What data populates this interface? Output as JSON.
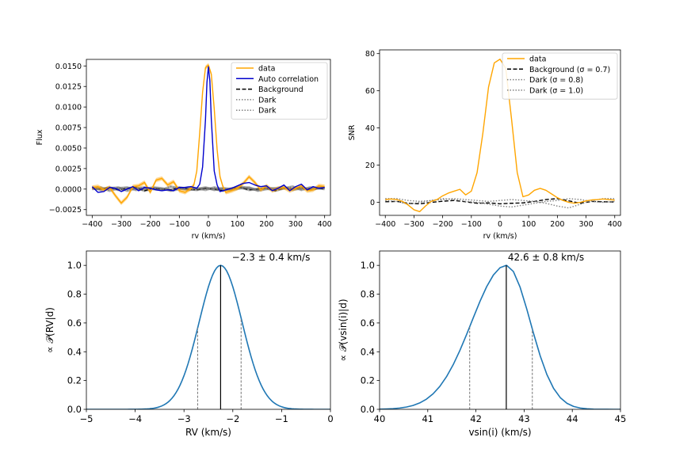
{
  "colors": {
    "data": "#ffa500",
    "auto": "#0000cd",
    "background": "#000000",
    "dark": "#808080",
    "posterior": "#1f77b4",
    "ci": "#808080"
  },
  "chart_data": [
    {
      "id": "flux",
      "type": "line",
      "title": "",
      "xlabel": "rv (km/s)",
      "ylabel": "Flux",
      "xlim": [
        -420,
        420
      ],
      "ylim": [
        -0.0032,
        0.0158
      ],
      "xticks": [
        -400,
        -300,
        -200,
        -100,
        0,
        100,
        200,
        300,
        400
      ],
      "yticks": [
        -0.0025,
        0.0,
        0.0025,
        0.005,
        0.0075,
        0.01,
        0.0125,
        0.015
      ],
      "ytick_labels": [
        "−0.0025",
        "0.0000",
        "0.0025",
        "0.0050",
        "0.0075",
        "0.0100",
        "0.0125",
        "0.0150"
      ],
      "legend": [
        "data",
        "Auto correlation",
        "Background",
        "Dark",
        "Dark"
      ],
      "legend_position": "top-right",
      "series": [
        {
          "name": "data",
          "style": "solid",
          "band": 0.00025,
          "x": [
            -400,
            -380,
            -360,
            -340,
            -320,
            -300,
            -280,
            -260,
            -240,
            -220,
            -200,
            -180,
            -160,
            -140,
            -120,
            -100,
            -80,
            -60,
            -50,
            -40,
            -30,
            -20,
            -10,
            0,
            10,
            20,
            30,
            40,
            50,
            60,
            80,
            100,
            120,
            140,
            160,
            180,
            200,
            220,
            240,
            260,
            280,
            300,
            320,
            340,
            360,
            380,
            400
          ],
          "y": [
            0.0002,
            0.0003,
            -0.0001,
            0.0002,
            -0.0008,
            -0.0017,
            -0.001,
            0.0003,
            0.0004,
            0.0008,
            -0.0004,
            0.0011,
            0.0013,
            0.0005,
            0.0009,
            -0.0002,
            -0.0004,
            0.0001,
            0.0005,
            0.0022,
            0.0068,
            0.0118,
            0.0148,
            0.0151,
            0.014,
            0.0098,
            0.0048,
            0.0015,
            0.0003,
            -0.0004,
            -0.0002,
            0.0001,
            0.0007,
            0.0015,
            0.0008,
            -0.0001,
            0.0004,
            -0.0002,
            0.0001,
            0.0002,
            -0.0002,
            0.0001,
            0.0004,
            -0.0002,
            -0.0001,
            0.0004,
            0.0003
          ]
        },
        {
          "name": "Auto correlation",
          "style": "solid",
          "x": [
            -400,
            -380,
            -360,
            -340,
            -320,
            -300,
            -280,
            -260,
            -240,
            -220,
            -200,
            -180,
            -160,
            -140,
            -120,
            -100,
            -80,
            -60,
            -40,
            -30,
            -20,
            -10,
            -5,
            0,
            5,
            10,
            20,
            30,
            40,
            60,
            80,
            100,
            120,
            140,
            160,
            180,
            200,
            220,
            240,
            260,
            280,
            300,
            320,
            340,
            360,
            380,
            400
          ],
          "y": [
            0.0003,
            -0.0004,
            -0.0003,
            0.0002,
            0.0001,
            -0.0003,
            0.0,
            0.0003,
            -0.0002,
            0.0002,
            0.0001,
            -0.0001,
            -0.0002,
            -0.0001,
            -0.0002,
            0.0002,
            0.0002,
            0.0003,
            0.0001,
            0.0006,
            0.0027,
            0.0085,
            0.013,
            0.0149,
            0.0132,
            0.0085,
            0.0022,
            0.0005,
            -0.0003,
            -0.0001,
            0.0001,
            0.0004,
            0.0007,
            0.0008,
            0.0005,
            0.0003,
            0.0004,
            -0.0002,
            0.0001,
            0.0005,
            -0.0002,
            0.0003,
            0.0006,
            -0.0001,
            0.0003,
            0.0001,
            0.0002
          ]
        },
        {
          "name": "Background",
          "style": "dashed",
          "x": [
            -400,
            -370,
            -340,
            -310,
            -280,
            -250,
            -220,
            -190,
            -160,
            -130,
            -100,
            -70,
            -40,
            -10,
            20,
            50,
            80,
            110,
            140,
            170,
            200,
            230,
            260,
            290,
            320,
            350,
            380,
            400
          ],
          "y": [
            0.0001,
            0.0,
            0.0002,
            -0.0001,
            0.0001,
            0.0002,
            -0.0002,
            0.0001,
            0.0,
            -0.0001,
            0.0002,
            0.0,
            -0.0001,
            0.0001,
            0.0,
            -0.0002,
            0.0001,
            0.0002,
            -0.0001,
            0.0,
            0.0001,
            -0.0002,
            0.0001,
            0.0,
            0.0002,
            -0.0001,
            0.0001,
            0.0
          ]
        },
        {
          "name": "Dark",
          "style": "dotted",
          "x": [
            -400,
            -370,
            -340,
            -310,
            -280,
            -250,
            -220,
            -190,
            -160,
            -130,
            -100,
            -70,
            -40,
            -10,
            20,
            50,
            80,
            110,
            140,
            170,
            200,
            230,
            260,
            290,
            320,
            350,
            380,
            400
          ],
          "y": [
            0.0002,
            -0.0001,
            0.0001,
            0.0002,
            -0.0002,
            0.0001,
            0.0002,
            0.0,
            -0.0001,
            0.0003,
            0.0001,
            -0.0001,
            0.0,
            0.0002,
            -0.0001,
            0.0001,
            0.0,
            0.0003,
            0.0001,
            -0.0001,
            0.0002,
            0.0,
            0.0001,
            0.0003,
            -0.0001,
            0.0002,
            0.0001,
            0.0002
          ]
        },
        {
          "name": "Dark",
          "style": "dotted",
          "x": [
            -400,
            -370,
            -340,
            -310,
            -280,
            -250,
            -220,
            -190,
            -160,
            -130,
            -100,
            -70,
            -40,
            -10,
            20,
            50,
            80,
            110,
            140,
            170,
            200,
            230,
            260,
            290,
            320,
            350,
            380,
            400
          ],
          "y": [
            0.0,
            0.0002,
            -0.0002,
            0.0001,
            0.0002,
            -0.0001,
            0.0,
            0.0002,
            0.0001,
            -0.0002,
            0.0,
            0.0002,
            0.0001,
            -0.0001,
            0.0002,
            0.0,
            -0.0001,
            0.0001,
            0.0002,
            -0.0002,
            0.0,
            0.0001,
            0.0002,
            -0.0001,
            0.0001,
            0.0,
            0.0002,
            0.0001
          ]
        }
      ]
    },
    {
      "id": "snr",
      "type": "line",
      "title": "",
      "xlabel": "rv (km/s)",
      "ylabel": "SNR",
      "xlim": [
        -420,
        420
      ],
      "ylim": [
        -7,
        82
      ],
      "xticks": [
        -400,
        -300,
        -200,
        -100,
        0,
        100,
        200,
        300,
        400
      ],
      "yticks": [
        0,
        20,
        40,
        60,
        80
      ],
      "ytick_labels": [
        "0",
        "20",
        "40",
        "60",
        "80"
      ],
      "legend": [
        "data",
        "Background (σ = 0.7)",
        "Dark (σ = 0.8)",
        "Dark (σ = 1.0)"
      ],
      "legend_position": "top-right",
      "series": [
        {
          "name": "data",
          "style": "solid",
          "x": [
            -400,
            -380,
            -360,
            -340,
            -320,
            -300,
            -280,
            -260,
            -240,
            -220,
            -200,
            -180,
            -160,
            -140,
            -120,
            -100,
            -80,
            -60,
            -40,
            -20,
            0,
            20,
            40,
            60,
            80,
            100,
            120,
            140,
            160,
            180,
            200,
            220,
            240,
            260,
            280,
            300,
            320,
            340,
            360,
            380,
            400
          ],
          "y": [
            1.5,
            1.8,
            1.5,
            0.5,
            -1.5,
            -4,
            -5,
            -2,
            0.5,
            1.5,
            3.5,
            5,
            6,
            7,
            4,
            6,
            16,
            37,
            62,
            75,
            77,
            72,
            45,
            16,
            3,
            4,
            6.5,
            7.5,
            6.5,
            4.5,
            2.5,
            1,
            0,
            -0.5,
            0,
            0.8,
            1.3,
            1.5,
            1.8,
            1.5,
            1.2
          ]
        },
        {
          "name": "Background (σ = 0.7)",
          "style": "dashed",
          "x": [
            -400,
            -360,
            -320,
            -280,
            -240,
            -200,
            -160,
            -120,
            -80,
            -40,
            0,
            40,
            80,
            120,
            160,
            200,
            240,
            280,
            320,
            360,
            400
          ],
          "y": [
            0.3,
            0.5,
            -0.5,
            -0.8,
            0,
            0.6,
            1,
            0.3,
            -0.5,
            -0.3,
            -0.8,
            -0.5,
            -0.3,
            0.5,
            1.5,
            2,
            0.8,
            -0.5,
            0.5,
            0.3,
            0.2
          ]
        },
        {
          "name": "Dark (σ = 0.8)",
          "style": "dotted",
          "x": [
            -400,
            -360,
            -320,
            -280,
            -240,
            -200,
            -160,
            -120,
            -80,
            -40,
            0,
            40,
            80,
            120,
            160,
            200,
            240,
            280,
            320,
            360,
            400
          ],
          "y": [
            2,
            2,
            1,
            0.5,
            1,
            1.5,
            2,
            1.5,
            1,
            0.5,
            1,
            1.5,
            1,
            0.5,
            -0.5,
            -2,
            -3,
            -1,
            1,
            2,
            2
          ]
        },
        {
          "name": "Dark (σ = 1.0)",
          "style": "dotted",
          "x": [
            -400,
            -360,
            -320,
            -280,
            -240,
            -200,
            -160,
            -120,
            -80,
            -40,
            0,
            40,
            80,
            120,
            160,
            200,
            240,
            280,
            320,
            360,
            400
          ],
          "y": [
            1,
            0.5,
            -1,
            0,
            1,
            2,
            1.5,
            0.5,
            0,
            -1,
            -2,
            -2.5,
            -1.5,
            -0.5,
            0.5,
            1,
            2,
            1.5,
            0.5,
            0,
            0.5
          ]
        }
      ]
    },
    {
      "id": "rv-posterior",
      "type": "line",
      "title": "",
      "annotation": "−2.3 ± 0.4 km/s",
      "xlabel": "RV (km/s)",
      "ylabel": "∝ 𝒫(RV|d)",
      "xlim": [
        -5,
        0
      ],
      "ylim": [
        0,
        1.1
      ],
      "xticks": [
        -5,
        -4,
        -3,
        -2,
        -1,
        0
      ],
      "xtick_labels": [
        "−5",
        "−4",
        "−3",
        "−2",
        "−1",
        "0"
      ],
      "yticks": [
        0,
        0.2,
        0.4,
        0.6,
        0.8,
        1.0
      ],
      "ytick_labels": [
        "0.0",
        "0.2",
        "0.4",
        "0.6",
        "0.8",
        "1.0"
      ],
      "median": -2.25,
      "ci": [
        -2.72,
        -1.83
      ],
      "mean": -2.25,
      "sigma": 0.44
    },
    {
      "id": "vsini-posterior",
      "type": "line",
      "title": "",
      "annotation": "42.6 ± 0.8 km/s",
      "xlabel": "vsin(i) (km/s)",
      "ylabel": "∝ 𝒫(vsin(i)|d)",
      "xlim": [
        40,
        45
      ],
      "ylim": [
        0,
        1.1
      ],
      "xticks": [
        40,
        41,
        42,
        43,
        44,
        45
      ],
      "xtick_labels": [
        "40",
        "41",
        "42",
        "43",
        "44",
        "45"
      ],
      "yticks": [
        0,
        0.2,
        0.4,
        0.6,
        0.8,
        1.0
      ],
      "ytick_labels": [
        "0.0",
        "0.2",
        "0.4",
        "0.6",
        "0.8",
        "1.0"
      ],
      "median": 42.63,
      "ci": [
        41.87,
        43.17
      ],
      "peak": 42.63,
      "sigma_left": 0.72,
      "sigma_right": 0.5
    }
  ]
}
